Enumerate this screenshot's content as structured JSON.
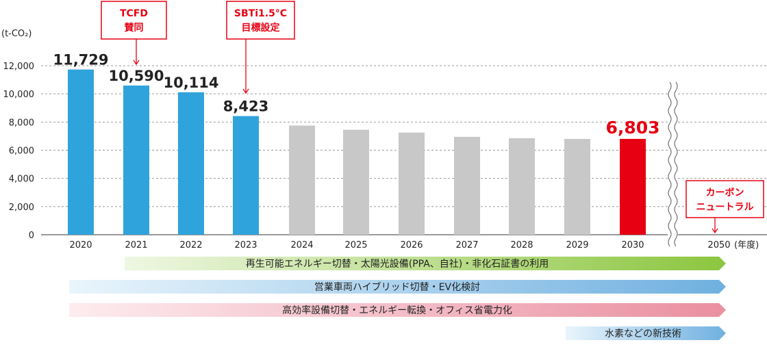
{
  "chart_data": {
    "type": "bar",
    "ylabel": "(t-CO₂)",
    "xlabel": "(年度)",
    "ylim": [
      0,
      12000
    ],
    "yticks": [
      0,
      2000,
      4000,
      6000,
      8000,
      10000,
      12000
    ],
    "ytick_labels": [
      "0",
      "2,000",
      "4,000",
      "6,000",
      "8,000",
      "10,000",
      "12,000"
    ],
    "categories": [
      "2020",
      "2021",
      "2022",
      "2023",
      "2024",
      "2025",
      "2026",
      "2027",
      "2028",
      "2029",
      "2030",
      "2050"
    ],
    "values": [
      11729,
      10590,
      10114,
      8423,
      7750,
      7450,
      7250,
      6950,
      6850,
      6800,
      6803,
      null
    ],
    "labels": [
      "11,729",
      "10,590",
      "10,114",
      "8,423",
      "",
      "",
      "",
      "",
      "",
      "",
      "6,803",
      ""
    ],
    "bar_status": [
      "actual",
      "actual",
      "actual",
      "actual",
      "plan",
      "plan",
      "plan",
      "plan",
      "plan",
      "plan",
      "target",
      "none"
    ],
    "grid": true,
    "axis_break_between": [
      "2030",
      "2050"
    ],
    "colors": {
      "actual": "#2fa3dc",
      "plan": "#c8c8c8",
      "target": "#e60012",
      "accent": "#e60012"
    },
    "callouts": [
      {
        "lines": [
          "TCFD",
          "賛同"
        ],
        "category": "2021"
      },
      {
        "lines": [
          "SBTi1.5°C",
          "目標設定"
        ],
        "category": "2023"
      },
      {
        "lines": [
          "カーボン",
          "ニュートラル"
        ],
        "category": "2050"
      }
    ]
  },
  "initiatives": [
    {
      "text": "再生可能エネルギー切替・太陽光設備(PPA、自社)・非化石証書の利用",
      "start": "2021",
      "color": "#8cc63f",
      "color_light": "#eef7e2"
    },
    {
      "text": "営業車両ハイブリッド切替・EV化検討",
      "start": "2020",
      "color": "#6fb0e0",
      "color_light": "#eaf5fc"
    },
    {
      "text": "高効率設備切替・エネルギー転換・オフィス省電力化",
      "start": "2020",
      "color": "#ea8fa0",
      "color_light": "#fdecef"
    },
    {
      "text": "水素などの新技術",
      "start": "2029",
      "color": "#6fb0e0",
      "color_light": "#eaf5fc"
    }
  ]
}
